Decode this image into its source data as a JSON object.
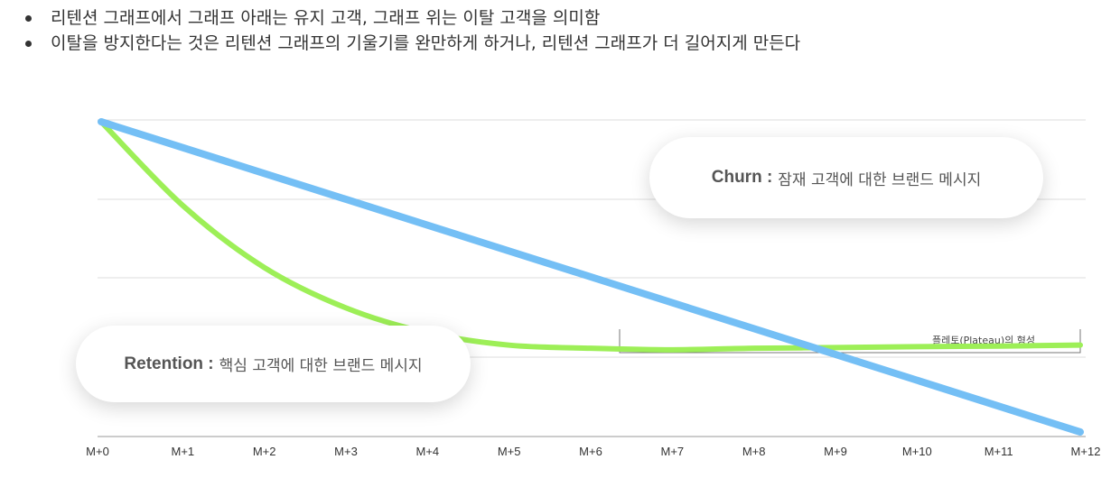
{
  "bullets": [
    "리텐션 그래프에서 그래프 아래는 유지 고객, 그래프 위는 이탈 고객을 의미함",
    "이탈을 방지한다는 것은 리텐션 그래프의 기울기를 완만하게 하거나, 리텐션 그래프가 더 길어지게 만든다"
  ],
  "callouts": {
    "churn": {
      "strong": "Churn :",
      "rest": "잠재 고객에 대한 브랜드 메시지"
    },
    "retention": {
      "strong": "Retention :",
      "rest": "핵심 고객에 대한 브랜드 메시지"
    }
  },
  "plateau_label": "플레토(Plateau)의 형성",
  "chart_data": {
    "type": "line",
    "categories": [
      "M+0",
      "M+1",
      "M+2",
      "M+3",
      "M+4",
      "M+5",
      "M+6",
      "M+7",
      "M+8",
      "M+9",
      "M+10",
      "M+11",
      "M+12"
    ],
    "series": [
      {
        "color": "#74bff5",
        "values": [
          100,
          91.7,
          83.3,
          75,
          66.7,
          58.3,
          50,
          41.7,
          33.3,
          25,
          16.7,
          8.3,
          0
        ]
      },
      {
        "color": "#9def57",
        "values": [
          100,
          73,
          53,
          40,
          32,
          28,
          27,
          26.5,
          27,
          27.2,
          27.5,
          27.7,
          28
        ]
      }
    ],
    "ylim": [
      0,
      100
    ],
    "grid": true,
    "legend": "none"
  }
}
